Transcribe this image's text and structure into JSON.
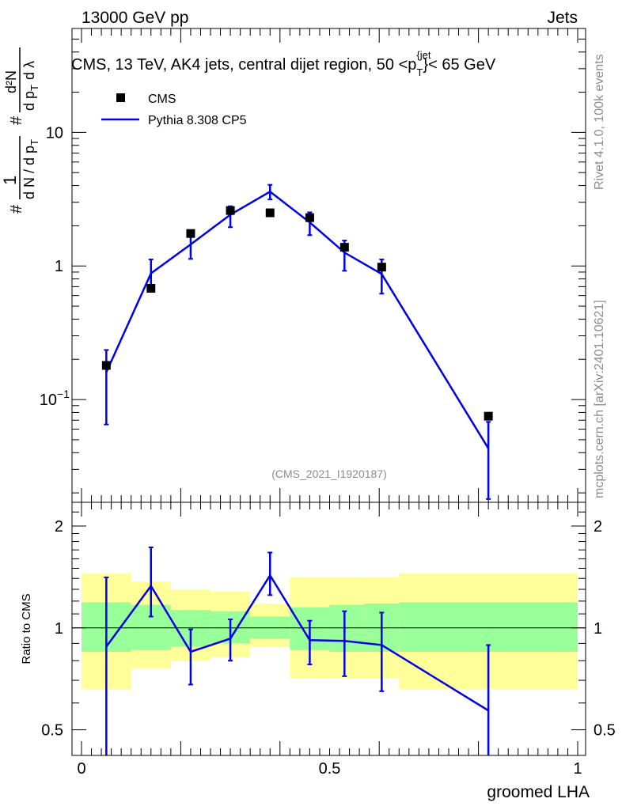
{
  "header": {
    "energy_label": "13000 GeV pp",
    "category_label": "Jets"
  },
  "side_labels": {
    "rivet": "Rivet 4.1.0,  100k events",
    "mcplots": "mcplots.cern.ch [arXiv:2401.10621]"
  },
  "colors": {
    "mc_line": "#0000e6",
    "data_marker": "#000000",
    "band_inner": "#99ff99",
    "band_outer": "#ffff99"
  },
  "chart_data": [
    {
      "type": "scatter",
      "title": "CMS, 13 TeV, AK4 jets, central dijet region, 50 <p_T^{jet}< 65 GeV",
      "title_parts": {
        "main": "CMS, 13 TeV, AK4 jets, central dijet region, 50 <p",
        "superscript": "{jet",
        "subscript": "T",
        "tail": "}< 65 GeV"
      },
      "ylabel": "1/(dN/dp_T) d²N/(dp_T dλ)",
      "ylabel_parts": {
        "hash1": "#",
        "one": "1",
        "dN": "d N / d p",
        "T": "T",
        "hash2": "#",
        "dpT": "d p",
        "d2N": "d²N",
        "dl": "d p",
        "dlambda": "d λ"
      },
      "yscale": "log",
      "ylim": [
        0.017,
        60
      ],
      "xlim": [
        -0.02,
        1.02
      ],
      "y_ticks": [
        {
          "value": 0.1,
          "label": "10⁻¹"
        },
        {
          "value": 1,
          "label": "1"
        },
        {
          "value": 10,
          "label": "10"
        }
      ],
      "watermark": "(CMS_2021_I1920187)",
      "legend": [
        {
          "name": "CMS",
          "marker": "square"
        },
        {
          "name": "Pythia 8.308 CP5",
          "marker": "line"
        }
      ],
      "legend_position": "top-left",
      "series": [
        {
          "name": "CMS",
          "x": [
            0.05,
            0.14,
            0.22,
            0.3,
            0.38,
            0.46,
            0.53,
            0.605,
            0.82
          ],
          "y": [
            0.18,
            0.68,
            1.75,
            2.6,
            2.5,
            2.3,
            1.38,
            0.98,
            0.075
          ]
        },
        {
          "name": "Pythia 8.308 CP5",
          "x": [
            0.05,
            0.14,
            0.22,
            0.3,
            0.38,
            0.46,
            0.53,
            0.605,
            0.82
          ],
          "y": [
            0.16,
            0.88,
            1.45,
            2.42,
            3.6,
            2.12,
            1.26,
            0.87,
            0.043
          ],
          "yerr_low": [
            0.065,
            0.67,
            1.13,
            1.95,
            3.15,
            1.7,
            0.92,
            0.62,
            0.018
          ],
          "yerr_high": [
            0.235,
            1.12,
            1.8,
            2.8,
            4.05,
            2.52,
            1.55,
            1.12,
            0.068
          ]
        }
      ]
    },
    {
      "type": "line",
      "ylabel": "Ratio to CMS",
      "xlabel": "groomed LHA",
      "ylim": [
        0.42,
        2.35
      ],
      "xlim": [
        -0.02,
        1.02
      ],
      "x_ticks": [
        {
          "value": 0,
          "label": "0"
        },
        {
          "value": 0.5,
          "label": "0.5"
        },
        {
          "value": 1,
          "label": "1"
        }
      ],
      "y_ticks": [
        {
          "value": 0.5,
          "label": "0.5"
        },
        {
          "value": 1,
          "label": "1"
        },
        {
          "value": 2,
          "label": "2"
        }
      ],
      "reference_line": 1,
      "data_bands": [
        {
          "x0": 0.0,
          "x1": 0.1,
          "inner": [
            0.85,
            1.19
          ],
          "outer": [
            0.66,
            1.45
          ]
        },
        {
          "x0": 0.1,
          "x1": 0.18,
          "inner": [
            0.86,
            1.17
          ],
          "outer": [
            0.76,
            1.37
          ]
        },
        {
          "x0": 0.18,
          "x1": 0.26,
          "inner": [
            0.88,
            1.13
          ],
          "outer": [
            0.8,
            1.3
          ]
        },
        {
          "x0": 0.26,
          "x1": 0.34,
          "inner": [
            0.9,
            1.12
          ],
          "outer": [
            0.82,
            1.28
          ]
        },
        {
          "x0": 0.34,
          "x1": 0.42,
          "inner": [
            0.93,
            1.08
          ],
          "outer": [
            0.88,
            1.18
          ]
        },
        {
          "x0": 0.42,
          "x1": 0.5,
          "inner": [
            0.86,
            1.15
          ],
          "outer": [
            0.71,
            1.41
          ]
        },
        {
          "x0": 0.5,
          "x1": 0.57,
          "inner": [
            0.85,
            1.17
          ],
          "outer": [
            0.71,
            1.41
          ]
        },
        {
          "x0": 0.57,
          "x1": 0.64,
          "inner": [
            0.85,
            1.18
          ],
          "outer": [
            0.71,
            1.41
          ]
        },
        {
          "x0": 0.64,
          "x1": 1.0,
          "inner": [
            0.85,
            1.19
          ],
          "outer": [
            0.66,
            1.45
          ]
        }
      ],
      "series": [
        {
          "name": "Pythia 8.308 CP5",
          "x": [
            0.05,
            0.14,
            0.22,
            0.3,
            0.38,
            0.46,
            0.53,
            0.605,
            0.82
          ],
          "y": [
            0.88,
            1.33,
            0.85,
            0.93,
            1.43,
            0.92,
            0.915,
            0.89,
            0.57
          ],
          "yerr_low": [
            0.3,
            1.08,
            0.68,
            0.8,
            1.25,
            0.78,
            0.72,
            0.65,
            0.3
          ],
          "yerr_high": [
            1.41,
            1.73,
            0.99,
            1.06,
            1.67,
            1.05,
            1.12,
            1.11,
            0.89
          ]
        }
      ]
    }
  ]
}
